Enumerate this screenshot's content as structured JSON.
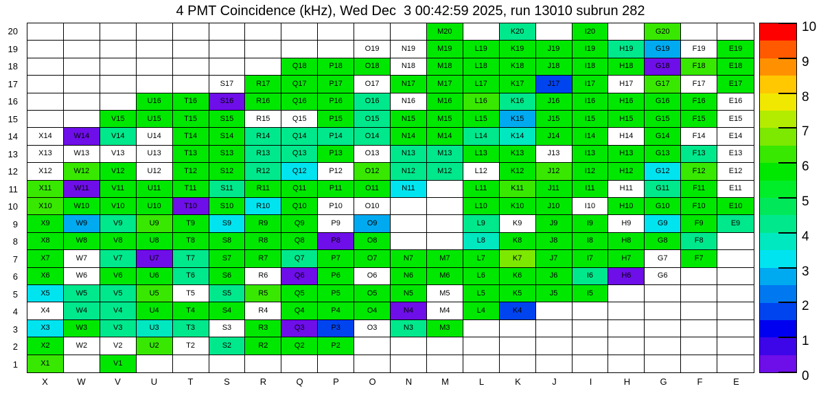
{
  "title": "4 PMT Coincidence (kHz), Wed Dec  3 00:42:59 2025, run 13010 subrun 282",
  "colorbar": {
    "min": 0,
    "max": 10,
    "ticks": [
      0,
      1,
      2,
      3,
      4,
      5,
      6,
      7,
      8,
      9,
      10
    ],
    "palette": [
      "#6e0ee8",
      "#3c06e8",
      "#0000f0",
      "#0044f0",
      "#0078f0",
      "#00aaf0",
      "#00e4f0",
      "#00e8c0",
      "#00e88c",
      "#00e85a",
      "#00ee2a",
      "#00e800",
      "#38e800",
      "#7de800",
      "#b4ec00",
      "#f0e800",
      "#ffc800",
      "#ff9100",
      "#ff5a00",
      "#ff0000"
    ]
  },
  "chart_data": {
    "type": "heatmap",
    "unit": "kHz",
    "value_range": [
      0,
      10
    ],
    "cell_label_format": "{column}{row}",
    "cell_encoding": "number = value in kHz estimated from colorbar; w = cell drawn white with label (no data); null = no cell label",
    "columns": [
      "X",
      "W",
      "V",
      "U",
      "T",
      "S",
      "R",
      "Q",
      "P",
      "O",
      "N",
      "M",
      "L",
      "K",
      "J",
      "I",
      "H",
      "G",
      "F",
      "E"
    ],
    "rows": [
      {
        "row": 20,
        "cells": [
          null,
          null,
          null,
          null,
          null,
          null,
          null,
          null,
          null,
          null,
          null,
          5.7,
          null,
          4.3,
          null,
          5.7,
          null,
          6.2,
          null,
          null
        ]
      },
      {
        "row": 19,
        "cells": [
          null,
          null,
          null,
          null,
          null,
          null,
          null,
          null,
          null,
          "w",
          "w",
          5.7,
          5.7,
          5.7,
          5.7,
          5.7,
          4.3,
          2.7,
          "w",
          5.7
        ]
      },
      {
        "row": 18,
        "cells": [
          null,
          null,
          null,
          null,
          null,
          null,
          null,
          5.7,
          5.7,
          5.7,
          "w",
          5.7,
          5.7,
          5.7,
          5.7,
          5.7,
          5.7,
          0.4,
          6.2,
          5.7
        ]
      },
      {
        "row": 17,
        "cells": [
          null,
          null,
          null,
          null,
          null,
          "w",
          5.7,
          5.7,
          5.7,
          "w",
          5.7,
          5.7,
          5.7,
          5.7,
          1.9,
          5.7,
          "w",
          6.2,
          "w",
          5.7
        ]
      },
      {
        "row": 16,
        "cells": [
          null,
          null,
          null,
          5.7,
          5.7,
          0.4,
          5.7,
          5.7,
          5.7,
          4.3,
          "w",
          5.7,
          6.2,
          4.3,
          5.7,
          5.7,
          5.7,
          5.7,
          5.7,
          "w"
        ]
      },
      {
        "row": 15,
        "cells": [
          null,
          null,
          5.7,
          5.7,
          5.7,
          5.7,
          "w",
          "w",
          5.7,
          4.3,
          5.7,
          5.7,
          5.7,
          2.7,
          5.7,
          5.7,
          5.7,
          5.7,
          5.7,
          "w"
        ]
      },
      {
        "row": 14,
        "cells": [
          "w",
          0.4,
          4.3,
          "w",
          5.7,
          5.7,
          4.3,
          4.3,
          4.3,
          4.3,
          5.7,
          5.7,
          4.3,
          3.6,
          5.7,
          5.7,
          "w",
          5.7,
          "w",
          "w"
        ]
      },
      {
        "row": 13,
        "cells": [
          "w",
          "w",
          "w",
          "w",
          5.7,
          5.7,
          4.3,
          4.3,
          5.7,
          "w",
          4.3,
          4.3,
          5.7,
          5.7,
          "w",
          5.7,
          5.7,
          5.7,
          4.3,
          "w"
        ]
      },
      {
        "row": 12,
        "cells": [
          "w",
          6.2,
          5.7,
          "w",
          5.7,
          5.7,
          4.3,
          3.2,
          "w",
          6.2,
          4.3,
          4.3,
          "w",
          5.7,
          6.2,
          5.7,
          5.7,
          3.2,
          6.2,
          "w"
        ]
      },
      {
        "row": 11,
        "cells": [
          6.2,
          0.4,
          5.7,
          5.7,
          5.7,
          4.3,
          5.7,
          5.7,
          5.7,
          5.7,
          3.2,
          null,
          5.7,
          6.2,
          5.7,
          5.7,
          "w",
          4.3,
          5.7,
          "w"
        ]
      },
      {
        "row": 10,
        "cells": [
          6.2,
          5.7,
          5.7,
          5.7,
          0.4,
          5.7,
          3.2,
          5.7,
          "w",
          "w",
          null,
          null,
          5.7,
          5.7,
          5.7,
          "w",
          5.7,
          5.7,
          5.7,
          5.7
        ]
      },
      {
        "row": 9,
        "cells": [
          5.7,
          2.7,
          4.3,
          6.2,
          5.7,
          3.2,
          5.7,
          5.7,
          "w",
          2.7,
          null,
          null,
          4.3,
          "w",
          5.7,
          5.7,
          "w",
          3.4,
          5.7,
          4.3
        ]
      },
      {
        "row": 8,
        "cells": [
          5.7,
          5.7,
          5.7,
          5.7,
          5.7,
          5.7,
          5.7,
          5.7,
          0.4,
          5.7,
          null,
          null,
          3.5,
          5.7,
          5.7,
          5.7,
          5.7,
          5.7,
          4.3,
          null
        ]
      },
      {
        "row": 7,
        "cells": [
          5.7,
          "w",
          4.3,
          0.4,
          4.3,
          5.7,
          5.7,
          4.3,
          5.7,
          5.7,
          5.7,
          5.7,
          5.7,
          6.8,
          5.7,
          5.7,
          5.7,
          "w",
          5.7,
          null
        ]
      },
      {
        "row": 6,
        "cells": [
          5.7,
          "w",
          5.7,
          5.7,
          4.3,
          5.7,
          "w",
          0.4,
          5.7,
          "w",
          5.7,
          5.7,
          5.7,
          5.7,
          5.7,
          4.3,
          0.4,
          "w",
          null,
          null
        ]
      },
      {
        "row": 5,
        "cells": [
          3.2,
          4.3,
          4.3,
          6.2,
          "w",
          4.3,
          6.2,
          5.7,
          5.7,
          5.7,
          5.7,
          "w",
          5.7,
          5.7,
          5.7,
          5.7,
          null,
          null,
          null,
          null
        ]
      },
      {
        "row": 4,
        "cells": [
          "w",
          4.3,
          4.3,
          5.7,
          5.7,
          5.7,
          "w",
          5.7,
          5.7,
          5.7,
          0.4,
          "w",
          5.7,
          1.6,
          null,
          null,
          null,
          null,
          null,
          null
        ]
      },
      {
        "row": 3,
        "cells": [
          3.2,
          5.7,
          4.3,
          3.6,
          4.3,
          "w",
          5.7,
          0.4,
          1.9,
          "w",
          4.3,
          5.7,
          null,
          null,
          null,
          null,
          null,
          null,
          null,
          null
        ]
      },
      {
        "row": 2,
        "cells": [
          5.7,
          "w",
          "w",
          6.2,
          "w",
          4.3,
          5.7,
          5.7,
          5.7,
          null,
          null,
          null,
          null,
          null,
          null,
          null,
          null,
          null,
          null,
          null
        ]
      },
      {
        "row": 1,
        "cells": [
          6.2,
          null,
          5.7,
          null,
          null,
          null,
          null,
          null,
          null,
          null,
          null,
          null,
          null,
          null,
          null,
          null,
          null,
          null,
          null,
          null
        ]
      }
    ]
  }
}
